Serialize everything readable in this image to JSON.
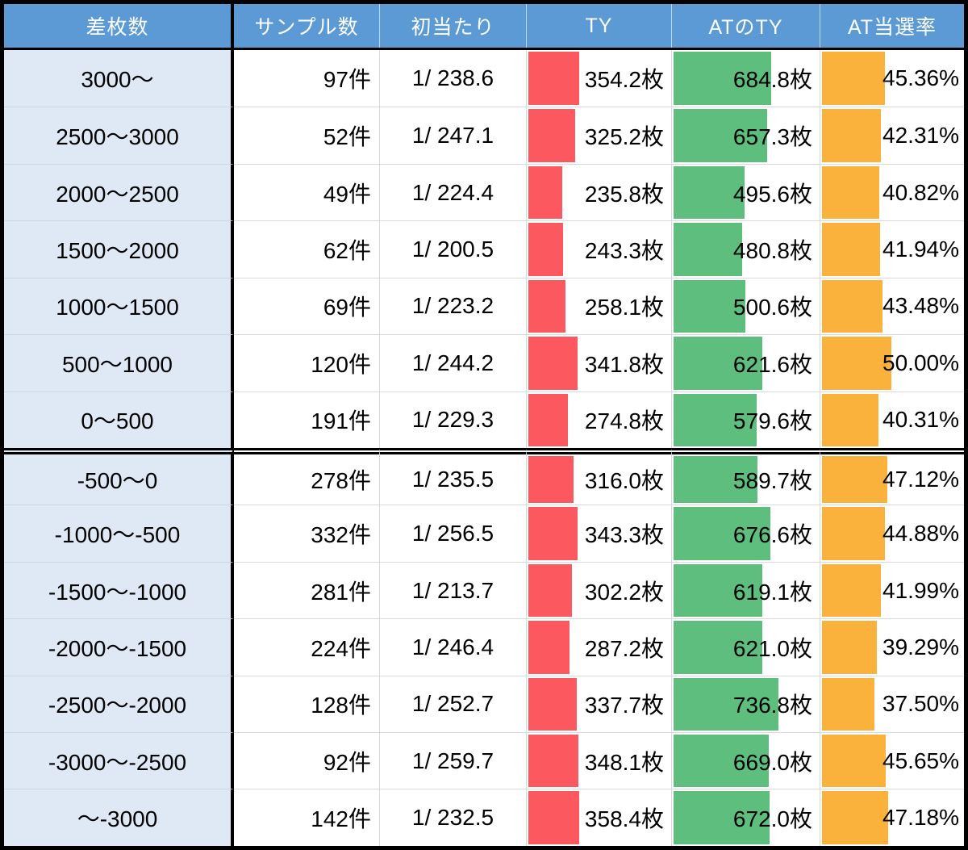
{
  "table": {
    "columns": [
      "差枚数",
      "サンプル数",
      "初当たり",
      "TY",
      "ATのTY",
      "AT当選率"
    ],
    "separator_before_row_index": 7,
    "rows": [
      {
        "range": "3000～",
        "samples": "97件",
        "first_hit": "1/ 238.6",
        "ty": "354.2枚",
        "at_ty": "684.8枚",
        "at_rate": "45.36%"
      },
      {
        "range": "2500～3000",
        "samples": "52件",
        "first_hit": "1/ 247.1",
        "ty": "325.2枚",
        "at_ty": "657.3枚",
        "at_rate": "42.31%"
      },
      {
        "range": "2000～2500",
        "samples": "49件",
        "first_hit": "1/ 224.4",
        "ty": "235.8枚",
        "at_ty": "495.6枚",
        "at_rate": "40.82%"
      },
      {
        "range": "1500～2000",
        "samples": "62件",
        "first_hit": "1/ 200.5",
        "ty": "243.3枚",
        "at_ty": "480.8枚",
        "at_rate": "41.94%"
      },
      {
        "range": "1000～1500",
        "samples": "69件",
        "first_hit": "1/ 223.2",
        "ty": "258.1枚",
        "at_ty": "500.6枚",
        "at_rate": "43.48%"
      },
      {
        "range": "500～1000",
        "samples": "120件",
        "first_hit": "1/ 244.2",
        "ty": "341.8枚",
        "at_ty": "621.6枚",
        "at_rate": "50.00%"
      },
      {
        "range": "0～500",
        "samples": "191件",
        "first_hit": "1/ 229.3",
        "ty": "274.8枚",
        "at_ty": "579.6枚",
        "at_rate": "40.31%"
      },
      {
        "range": "-500～0",
        "samples": "278件",
        "first_hit": "1/ 235.5",
        "ty": "316.0枚",
        "at_ty": "589.7枚",
        "at_rate": "47.12%"
      },
      {
        "range": "-1000～-500",
        "samples": "332件",
        "first_hit": "1/ 256.5",
        "ty": "343.3枚",
        "at_ty": "676.6枚",
        "at_rate": "44.88%"
      },
      {
        "range": "-1500～-1000",
        "samples": "281件",
        "first_hit": "1/ 213.7",
        "ty": "302.2枚",
        "at_ty": "619.1枚",
        "at_rate": "41.99%"
      },
      {
        "range": "-2000～-1500",
        "samples": "224件",
        "first_hit": "1/ 246.4",
        "ty": "287.2枚",
        "at_ty": "621.0枚",
        "at_rate": "39.29%"
      },
      {
        "range": "-2500～-2000",
        "samples": "128件",
        "first_hit": "1/ 252.7",
        "ty": "337.7枚",
        "at_ty": "736.8枚",
        "at_rate": "37.50%"
      },
      {
        "range": "-3000～-2500",
        "samples": "92件",
        "first_hit": "1/ 259.7",
        "ty": "348.1枚",
        "at_ty": "669.0枚",
        "at_rate": "45.65%"
      },
      {
        "range": "～-3000",
        "samples": "142件",
        "first_hit": "1/ 232.5",
        "ty": "358.4枚",
        "at_ty": "672.0枚",
        "at_rate": "47.18%"
      }
    ]
  },
  "chart_data": {
    "type": "table",
    "title": "差枚数別サンプル集計表（データバー付き）",
    "categories": [
      "3000～",
      "2500～3000",
      "2000～2500",
      "1500～2000",
      "1000～1500",
      "500～1000",
      "0～500",
      "-500～0",
      "-1000～-500",
      "-1500～-1000",
      "-2000～-1500",
      "-2500～-2000",
      "-3000～-2500",
      "～-3000"
    ],
    "series": [
      {
        "name": "サンプル数(件)",
        "values": [
          97,
          52,
          49,
          62,
          69,
          120,
          191,
          278,
          332,
          281,
          224,
          128,
          92,
          142
        ]
      },
      {
        "name": "初当たり(1/x)",
        "values": [
          238.6,
          247.1,
          224.4,
          200.5,
          223.2,
          244.2,
          229.3,
          235.5,
          256.5,
          213.7,
          246.4,
          252.7,
          259.7,
          232.5
        ]
      },
      {
        "name": "TY(枚)",
        "values": [
          354.2,
          325.2,
          235.8,
          243.3,
          258.1,
          341.8,
          274.8,
          316.0,
          343.3,
          302.2,
          287.2,
          337.7,
          348.1,
          358.4
        ]
      },
      {
        "name": "ATのTY(枚)",
        "values": [
          684.8,
          657.3,
          495.6,
          480.8,
          500.6,
          621.6,
          579.6,
          589.7,
          676.6,
          619.1,
          621.0,
          736.8,
          669.0,
          672.0
        ]
      },
      {
        "name": "AT当選率(%)",
        "values": [
          45.36,
          42.31,
          40.82,
          41.94,
          43.48,
          50.0,
          40.31,
          47.12,
          44.88,
          41.99,
          39.29,
          37.5,
          45.65,
          47.18
        ]
      }
    ],
    "bar_colors": {
      "ty": "#fb5860",
      "at_ty": "#5ebe7d",
      "at_rate": "#fbb23c"
    },
    "bar_scales": {
      "ty": 1011,
      "at_ty": 1034,
      "at_rate": 103
    },
    "header_color": "#5b9ad5",
    "row_label_bg": "#dee9f5",
    "grid": true,
    "legend_position": "none"
  }
}
